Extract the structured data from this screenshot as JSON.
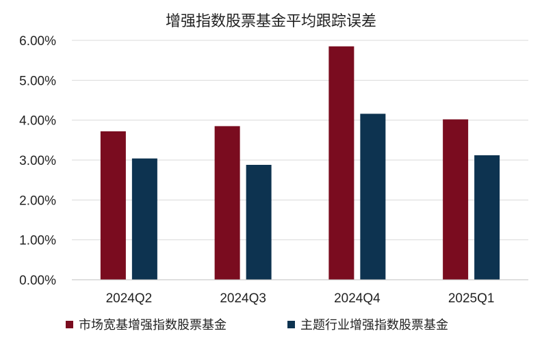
{
  "chart_data": {
    "type": "bar",
    "title": "增强指数股票基金平均跟踪误差",
    "categories": [
      "2024Q2",
      "2024Q3",
      "2024Q4",
      "2025Q1"
    ],
    "series": [
      {
        "name": "市场宽基增强指数股票基金",
        "color": "#7a0c1f",
        "values": [
          3.72,
          3.85,
          5.85,
          4.02
        ]
      },
      {
        "name": "主题行业增强指数股票基金",
        "color": "#0d3350",
        "values": [
          3.04,
          2.88,
          4.16,
          3.12
        ]
      }
    ],
    "ylim": [
      0,
      6
    ],
    "yticks": [
      "0.00%",
      "1.00%",
      "2.00%",
      "3.00%",
      "4.00%",
      "5.00%",
      "6.00%"
    ],
    "grid": true,
    "legend_position": "bottom"
  }
}
